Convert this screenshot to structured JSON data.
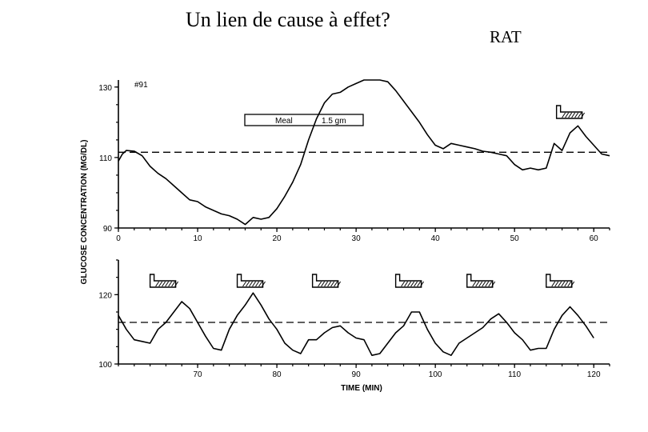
{
  "slide": {
    "title": "Un lien de cause à effet?",
    "tag": "RAT"
  },
  "chart_data": [
    {
      "type": "line",
      "annotation_id": "#91",
      "xlabel": "",
      "ylabel": "GLUCOSE CONCENTRATION (MG/DL)",
      "xlim": [
        0,
        62
      ],
      "ylim": [
        90,
        132
      ],
      "xticks": [
        "0",
        "10",
        "20",
        "30",
        "40",
        "50",
        "60"
      ],
      "yticks": [
        "90",
        "110",
        "130"
      ],
      "reference_line": 111.5,
      "meal_label": "Meal",
      "meal_amount": "1.5 gm",
      "feed_marker_label": "",
      "feed_marker_x": 55.3,
      "series": [
        {
          "x": [
            0,
            0.5,
            1,
            2,
            3,
            4,
            5,
            6,
            7,
            8,
            9,
            10,
            11,
            12,
            13,
            14,
            15,
            16,
            17,
            18,
            19,
            20,
            21,
            22,
            23,
            24,
            25,
            26,
            27,
            28,
            29,
            30,
            31,
            32,
            33,
            34,
            35,
            36,
            37,
            38,
            39,
            40,
            41,
            42,
            43,
            44,
            45,
            46,
            47,
            48,
            49,
            50,
            51,
            52,
            53,
            54,
            55,
            56,
            57,
            58,
            59,
            60,
            61,
            62
          ],
          "y": [
            109,
            111,
            112,
            111.8,
            110.5,
            107.5,
            105.5,
            104,
            102,
            100,
            98,
            97.5,
            96,
            95,
            94,
            93.5,
            92.5,
            91,
            93,
            92.5,
            93,
            95.5,
            99,
            103,
            108,
            115,
            121,
            125.5,
            128,
            128.5,
            130,
            131,
            132,
            132,
            132,
            131.5,
            129,
            126,
            123,
            120,
            116.5,
            113.5,
            112.5,
            114,
            113.5,
            113,
            112.5,
            111.8,
            111.5,
            111,
            110.5,
            108,
            106.5,
            107,
            106.5,
            107,
            114,
            112,
            117,
            119,
            116,
            113.5,
            111,
            110.5
          ]
        }
      ]
    },
    {
      "type": "line",
      "xlabel": "TIME (MIN)",
      "ylabel": "",
      "xlim": [
        60,
        122
      ],
      "ylim": [
        100,
        130
      ],
      "xticks": [
        "70",
        "80",
        "90",
        "100",
        "110",
        "120"
      ],
      "yticks": [
        "100",
        "120"
      ],
      "reference_line": 112,
      "feed_markers_x": [
        64,
        75,
        84.5,
        95,
        104,
        114
      ],
      "series": [
        {
          "x": [
            60,
            61,
            62,
            63,
            64,
            65,
            66,
            67,
            68,
            69,
            70,
            71,
            72,
            73,
            74,
            75,
            76,
            77,
            78,
            79,
            80,
            81,
            82,
            83,
            84,
            85,
            86,
            87,
            88,
            89,
            90,
            91,
            92,
            93,
            94,
            95,
            96,
            97,
            98,
            99,
            100,
            101,
            102,
            103,
            104,
            105,
            106,
            107,
            108,
            109,
            110,
            111,
            112,
            113,
            114,
            115,
            116,
            117,
            118,
            119,
            120
          ],
          "y": [
            114,
            110,
            107,
            106.5,
            106,
            110,
            112,
            115,
            118,
            116,
            112,
            108,
            104.5,
            104,
            110,
            114,
            117,
            120.5,
            117,
            113,
            110,
            106,
            104,
            103,
            107,
            107,
            109,
            110.5,
            111,
            109,
            107.5,
            107,
            102.5,
            103,
            106,
            109,
            111,
            115,
            115,
            110,
            106,
            103.5,
            102.5,
            106,
            107.5,
            109,
            110.5,
            113,
            114.5,
            112,
            109,
            107,
            104,
            104.5,
            104.5,
            110,
            114,
            116.5,
            114,
            111,
            107.5
          ]
        }
      ]
    }
  ]
}
